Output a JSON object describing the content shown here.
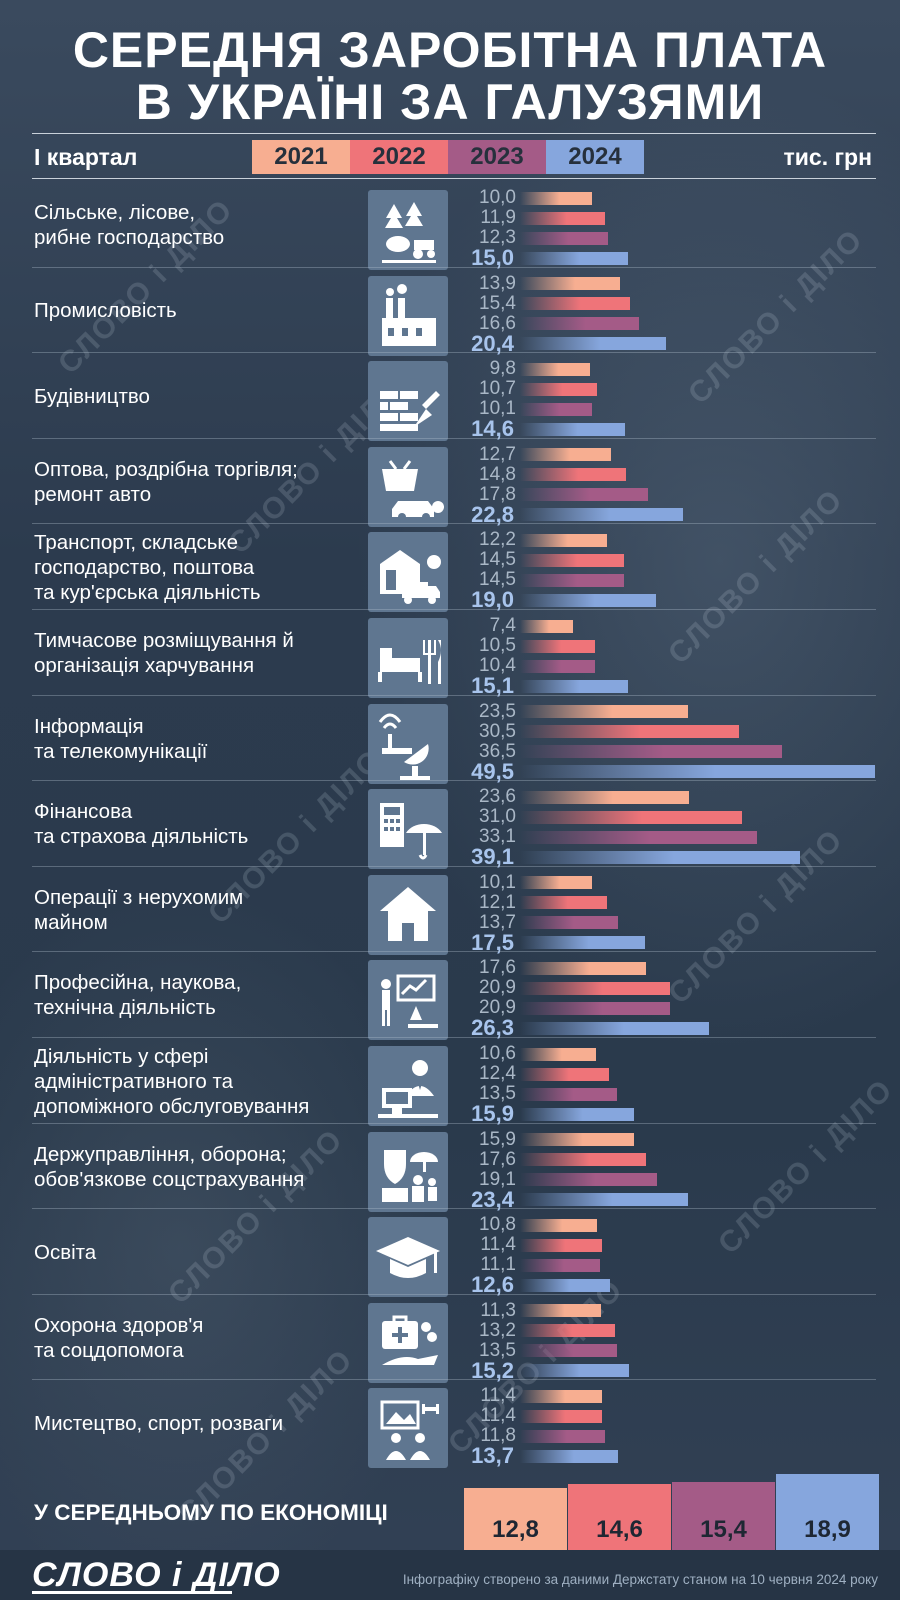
{
  "title_line1": "СЕРЕДНЯ ЗАРОБІТНА ПЛАТА",
  "title_line2": "В УКРАЇНІ ЗА ГАЛУЗЯМИ",
  "quarter_label": "І квартал",
  "unit_label": "тис. грн",
  "colors": {
    "2021": "#f7ae91",
    "2022": "#ef7479",
    "2023": "#a45b87",
    "2024": "#86a6dd"
  },
  "chart_data": {
    "type": "bar",
    "orientation": "horizontal",
    "series_names": [
      "2021",
      "2022",
      "2023",
      "2024"
    ],
    "categories": [
      {
        "label": "Сільське, лісове,\nрибне господарство",
        "icon": "farm-icon",
        "values": [
          "10,0",
          "11,9",
          "12,3",
          "15,0"
        ]
      },
      {
        "label": "Промисловість",
        "icon": "factory-icon",
        "values": [
          "13,9",
          "15,4",
          "16,6",
          "20,4"
        ]
      },
      {
        "label": "Будівництво",
        "icon": "bricks-trowel-icon",
        "values": [
          "9,8",
          "10,7",
          "10,1",
          "14,6"
        ]
      },
      {
        "label": "Оптова, роздрібна торгівля;\nремонт авто",
        "icon": "basket-car-icon",
        "values": [
          "12,7",
          "14,8",
          "17,8",
          "22,8"
        ]
      },
      {
        "label": "Транспорт, складське\nгосподарство, поштова\nта кур'єрська діяльність",
        "icon": "warehouse-truck-icon",
        "values": [
          "12,2",
          "14,5",
          "14,5",
          "19,0"
        ]
      },
      {
        "label": "Тимчасове розміщування й\nорганізація харчування",
        "icon": "bed-cutlery-icon",
        "values": [
          "7,4",
          "10,5",
          "10,4",
          "15,1"
        ]
      },
      {
        "label": "Інформація\nта телекомунікації",
        "icon": "satellite-icon",
        "values": [
          "23,5",
          "30,5",
          "36,5",
          "49,5"
        ]
      },
      {
        "label": "Фінансова\nта страхова діяльність",
        "icon": "calculator-umbrella-icon",
        "values": [
          "23,6",
          "31,0",
          "33,1",
          "39,1"
        ]
      },
      {
        "label": "Операції з нерухомим\nмайном",
        "icon": "house-icon",
        "values": [
          "10,1",
          "12,1",
          "13,7",
          "17,5"
        ]
      },
      {
        "label": "Професійна, наукова,\nтехнічна діяльність",
        "icon": "presenter-microscope-icon",
        "values": [
          "17,6",
          "20,9",
          "20,9",
          "26,3"
        ]
      },
      {
        "label": "Діяльність у сфері\nадміністративного та\nдопоміжного обслуговування",
        "icon": "office-worker-icon",
        "values": [
          "10,6",
          "12,4",
          "13,5",
          "15,9"
        ]
      },
      {
        "label": "Держуправління, оборона;\nобов'язкове соцстрахування",
        "icon": "shield-family-icon",
        "values": [
          "15,9",
          "17,6",
          "19,1",
          "23,4"
        ]
      },
      {
        "label": "Освіта",
        "icon": "graduation-cap-icon",
        "values": [
          "10,8",
          "11,4",
          "11,1",
          "12,6"
        ]
      },
      {
        "label": "Охорона здоров'я\nта соцдопомога",
        "icon": "medkit-hand-icon",
        "values": [
          "11,3",
          "13,2",
          "13,5",
          "15,2"
        ]
      },
      {
        "label": "Мистецтво, спорт, розваги",
        "icon": "art-sport-icon",
        "values": [
          "11,4",
          "11,4",
          "11,8",
          "13,7"
        ]
      }
    ],
    "average": {
      "label": "У СЕРЕДНЬОМУ ПО ЕКОНОМІЦІ",
      "values": [
        "12,8",
        "14,6",
        "15,4",
        "18,9"
      ]
    }
  },
  "watermark_text": "СЛОВО і ДІЛО",
  "footer": {
    "logo": "СЛОВО і ДІЛО",
    "source": "Інфографіку створено за даними Держстату станом на 10 червня 2024 року"
  }
}
